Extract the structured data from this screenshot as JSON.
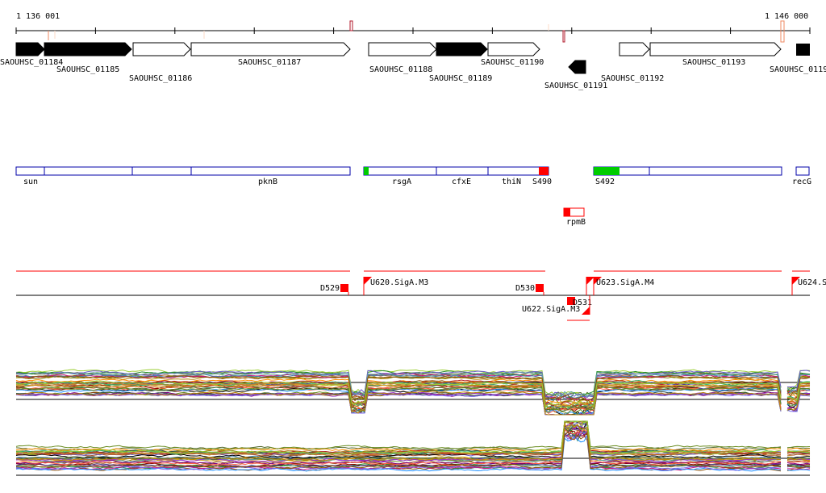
{
  "ruler": {
    "start_label": "1 136 001",
    "end_label": "1 146 000"
  },
  "colors": {
    "ruler": "#000000",
    "gene_dark": "#000000",
    "gene_light": "#ffffff",
    "annotation_box": "#0000aa",
    "red": "#ff0000",
    "green": "#00cc00",
    "tick_mark": "#f4a582"
  },
  "genes": [
    {
      "id": "SAOUHSC_01184",
      "strand": "+",
      "filled": true
    },
    {
      "id": "SAOUHSC_01185",
      "strand": "+",
      "filled": true
    },
    {
      "id": "SAOUHSC_01186",
      "strand": "+",
      "filled": false
    },
    {
      "id": "SAOUHSC_01187",
      "strand": "+",
      "filled": false
    },
    {
      "id": "SAOUHSC_01188",
      "strand": "+",
      "filled": false
    },
    {
      "id": "SAOUHSC_01189",
      "strand": "+",
      "filled": true
    },
    {
      "id": "SAOUHSC_01190",
      "strand": "+",
      "filled": false
    },
    {
      "id": "SAOUHSC_01191",
      "strand": "-",
      "filled": true
    },
    {
      "id": "SAOUHSC_01192",
      "strand": "+",
      "filled": false
    },
    {
      "id": "SAOUHSC_01193",
      "strand": "+",
      "filled": false
    },
    {
      "id": "SAOUHSC_0119",
      "strand": "+",
      "filled": true
    }
  ],
  "annotations": [
    {
      "name": "sun"
    },
    {
      "name": "pknB"
    },
    {
      "name": "rsgA"
    },
    {
      "name": "cfxE"
    },
    {
      "name": "thiN"
    },
    {
      "name": "S490"
    },
    {
      "name": "S492"
    },
    {
      "name": "recG"
    },
    {
      "name": "rpmB"
    }
  ],
  "promoters": [
    {
      "name": "D529"
    },
    {
      "name": "U620.SigA.M3"
    },
    {
      "name": "D530"
    },
    {
      "name": "D531"
    },
    {
      "name": "U622.SigA.M3"
    },
    {
      "name": "U623.SigA.M4"
    },
    {
      "name": "U624.S"
    }
  ],
  "expression_tracks": [
    {
      "strand": "+"
    },
    {
      "strand": "-"
    }
  ]
}
